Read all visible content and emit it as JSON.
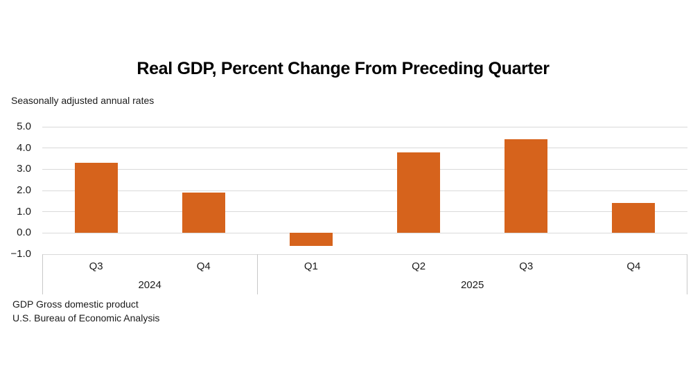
{
  "header": {
    "title": "Real GDP, Percent Change From Preceding Quarter",
    "subtitle": "Seasonally adjusted annual rates"
  },
  "footer": {
    "line1": "GDP Gross domestic product",
    "line2": "U.S. Bureau of Economic Analysis"
  },
  "colors": {
    "bar": "#D6631C",
    "gridline": "#D9D9D9",
    "axis_line": "#C8C8C8",
    "text": "#1A1A1A"
  },
  "chart_data": {
    "type": "bar",
    "title": "Real GDP, Percent Change From Preceding Quarter",
    "subtitle": "Seasonally adjusted annual rates",
    "categories": [
      "Q3",
      "Q4",
      "Q1",
      "Q2",
      "Q3",
      "Q4"
    ],
    "values": [
      3.3,
      1.9,
      -0.6,
      3.8,
      4.4,
      1.4
    ],
    "year_groups": [
      {
        "label": "2024",
        "start": 0,
        "count": 2
      },
      {
        "label": "2025",
        "start": 2,
        "count": 4
      }
    ],
    "xlabel": "",
    "ylabel": "",
    "ylim": [
      -1.0,
      5.0
    ],
    "yticks": [
      {
        "value": 5.0,
        "label": "5.0"
      },
      {
        "value": 4.0,
        "label": "4.0"
      },
      {
        "value": 3.0,
        "label": "3.0"
      },
      {
        "value": 2.0,
        "label": "2.0"
      },
      {
        "value": 1.0,
        "label": "1.0"
      },
      {
        "value": 0.0,
        "label": "0.0"
      },
      {
        "value": -1.0,
        "label": "−1.0"
      }
    ],
    "grid": true,
    "legend": "none",
    "bar_color": "#D6631C"
  }
}
